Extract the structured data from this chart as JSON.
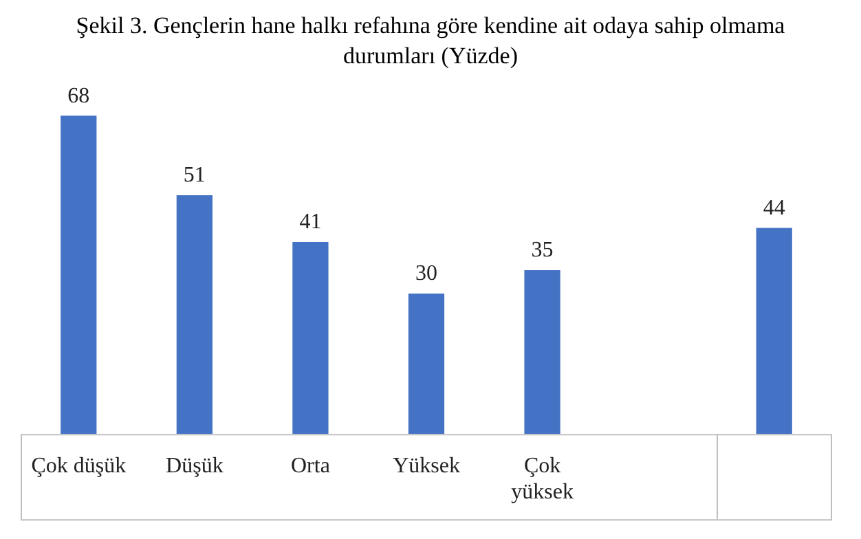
{
  "chart_data": {
    "type": "bar",
    "title": "Şekil 3. Gençlerin hane halkı refahına göre kendine ait odaya sahip olmama durumları (Yüzde)",
    "categories": [
      "Çok düşük",
      "Düşük",
      "Orta",
      "Yüksek",
      "Çok yüksek",
      null,
      null
    ],
    "values": [
      68,
      51,
      41,
      30,
      35,
      null,
      44
    ],
    "color": "#4472c4",
    "data_labels": true,
    "legend": false
  }
}
